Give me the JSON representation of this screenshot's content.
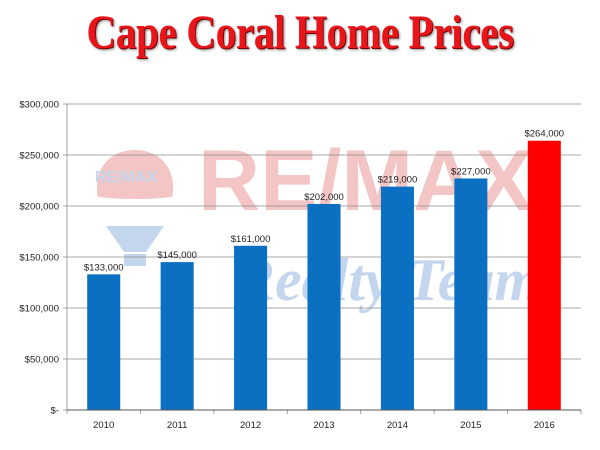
{
  "chart_data": {
    "type": "bar",
    "title": "Cape Coral Home Prices",
    "xlabel": "",
    "ylabel": "",
    "categories": [
      "2010",
      "2011",
      "2012",
      "2013",
      "2014",
      "2015",
      "2016"
    ],
    "values": [
      133000,
      145000,
      161000,
      202000,
      219000,
      227000,
      264000
    ],
    "data_labels": [
      "$133,000",
      "$145,000",
      "$161,000",
      "$202,000",
      "$219,000",
      "$227,000",
      "$264,000"
    ],
    "ylim": [
      0,
      300000
    ],
    "yticks": [
      0,
      50000,
      100000,
      150000,
      200000,
      250000,
      300000
    ],
    "ytick_labels": [
      "$-",
      "$50,000",
      "$100,000",
      "$150,000",
      "$200,000",
      "$250,000",
      "$300,000"
    ],
    "grid": true,
    "legend": "none",
    "colors": {
      "bar": "#0b6fc2",
      "highlight_bar": "#ff0000",
      "title": "#e8161b",
      "grid": "#8c8c8c"
    },
    "highlight_index": 6
  },
  "watermark": {
    "brand": "RE/MAX",
    "subtitle": "Realty Team"
  }
}
